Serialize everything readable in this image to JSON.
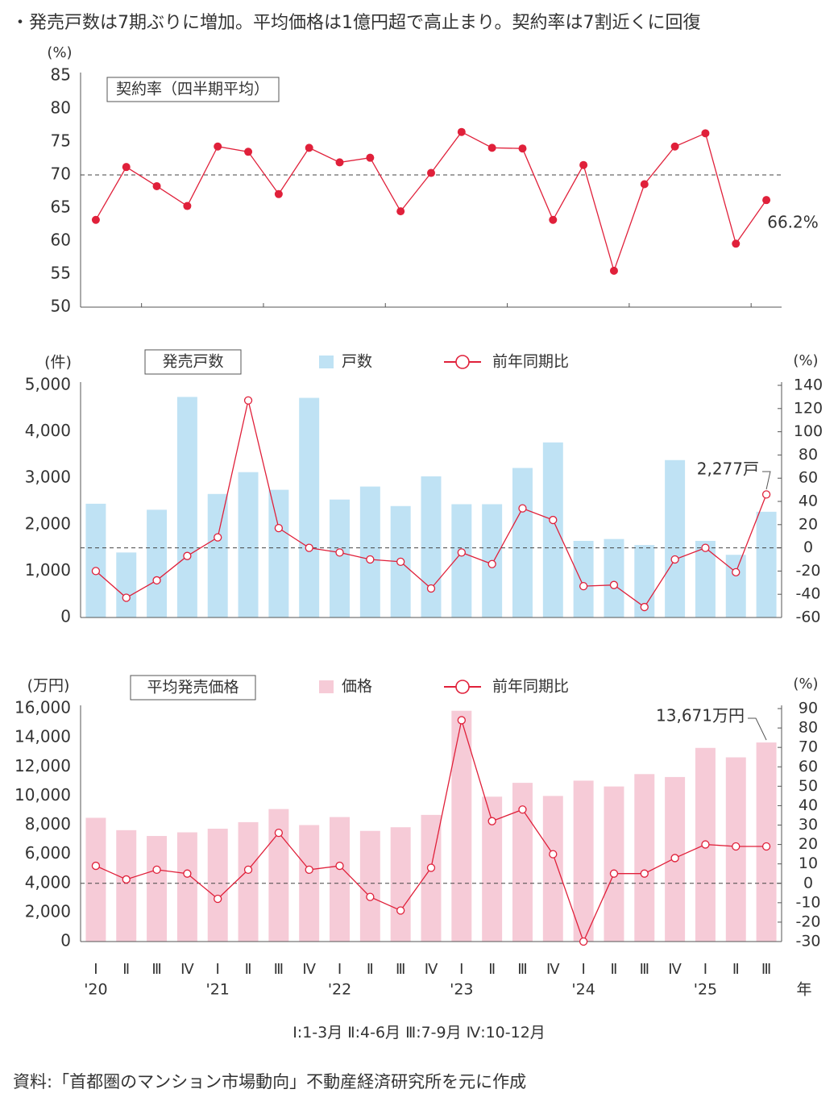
{
  "headline": "・発売戸数は7期ぶりに増加。平均価格は1億円超で高止まり。契約率は7割近くに回復",
  "quarter_legend": "Ⅰ:1-3月 Ⅱ:4-6月 Ⅲ:7-9月 Ⅳ:10-12月",
  "source": "資料:「首都圏のマンション市場動向」不動産経済研究所を元に作成",
  "colors": {
    "line": "#e0203a",
    "units_bar": "#bfe2f4",
    "price_bar": "#f6cbd7",
    "axis": "#555555",
    "ref_line": "#444444"
  },
  "chart_data": [
    {
      "type": "line",
      "title": "契約率（四半期平均）",
      "ylabel": "(%)",
      "ylim": [
        50,
        85
      ],
      "yticks": [
        50,
        55,
        60,
        65,
        70,
        75,
        80,
        85
      ],
      "reference_line": 70,
      "series": [
        {
          "values": [
            63.2,
            71.2,
            68.3,
            65.3,
            74.3,
            73.5,
            67.1,
            74.1,
            71.9,
            72.6,
            64.5,
            70.3,
            76.5,
            74.1,
            74.0,
            63.2,
            71.5,
            55.5,
            68.6,
            74.3,
            76.3,
            59.6,
            66.2
          ]
        }
      ],
      "end_label": "66.2%"
    },
    {
      "type": "bar",
      "title": "発売戸数",
      "ylabel": "(件)",
      "ylim": [
        0,
        5000
      ],
      "yticks": [
        0,
        1000,
        2000,
        3000,
        4000,
        5000
      ],
      "y2label": "(%)",
      "y2lim": [
        -60,
        140
      ],
      "y2ticks": [
        -60,
        -40,
        -20,
        0,
        20,
        40,
        60,
        80,
        100,
        120,
        140
      ],
      "reference_line_y2": 0,
      "series": [
        {
          "name": "戸数",
          "kind": "bar",
          "axis": "left",
          "values": [
            2450,
            1400,
            2320,
            4750,
            2660,
            3130,
            2750,
            4730,
            2540,
            2820,
            2400,
            3040,
            2440,
            2440,
            3220,
            3770,
            1650,
            1690,
            1560,
            3390,
            1650,
            1350,
            2277
          ]
        },
        {
          "name": "前年同期比",
          "kind": "line",
          "axis": "right",
          "values": [
            -20,
            -43,
            -28,
            -7,
            9,
            127,
            17,
            0,
            -4,
            -10,
            -12,
            -35,
            -4,
            -14,
            34,
            24,
            -33,
            -32,
            -51,
            -10,
            0,
            -21,
            46
          ]
        }
      ],
      "end_label": "2,277戸"
    },
    {
      "type": "bar",
      "title": "平均発売価格",
      "ylabel": "(万円)",
      "ylim": [
        0,
        16000
      ],
      "yticks": [
        0,
        2000,
        4000,
        6000,
        8000,
        10000,
        12000,
        14000,
        16000
      ],
      "y2label": "(%)",
      "y2lim": [
        -30,
        90
      ],
      "y2ticks": [
        -30,
        -20,
        -10,
        0,
        10,
        20,
        30,
        40,
        50,
        60,
        70,
        80,
        90
      ],
      "reference_line_y2": 0,
      "series": [
        {
          "name": "価格",
          "kind": "bar",
          "axis": "left",
          "values": [
            8500,
            7650,
            7250,
            7500,
            7750,
            8200,
            9100,
            8000,
            8550,
            7600,
            7850,
            8700,
            15850,
            9950,
            10900,
            10000,
            11050,
            10650,
            11500,
            11300,
            13300,
            12650,
            13671
          ]
        },
        {
          "name": "前年同期比",
          "kind": "line",
          "axis": "right",
          "values": [
            9,
            2,
            7,
            5,
            -8,
            7,
            26,
            7,
            9,
            -7,
            -14,
            8,
            84,
            32,
            38,
            15,
            -30,
            5,
            5,
            13,
            20,
            19,
            19
          ]
        }
      ],
      "end_label": "13,671万円"
    }
  ],
  "x_axis": {
    "quarters": [
      "Ⅰ",
      "Ⅱ",
      "Ⅲ",
      "Ⅳ",
      "Ⅰ",
      "Ⅱ",
      "Ⅲ",
      "Ⅳ",
      "Ⅰ",
      "Ⅱ",
      "Ⅲ",
      "Ⅳ",
      "Ⅰ",
      "Ⅱ",
      "Ⅲ",
      "Ⅳ",
      "Ⅰ",
      "Ⅱ",
      "Ⅲ",
      "Ⅳ",
      "Ⅰ",
      "Ⅱ",
      "Ⅲ"
    ],
    "years": [
      {
        "index": 0,
        "label": "'20"
      },
      {
        "index": 4,
        "label": "'21"
      },
      {
        "index": 8,
        "label": "'22"
      },
      {
        "index": 12,
        "label": "'23"
      },
      {
        "index": 16,
        "label": "'24"
      },
      {
        "index": 20,
        "label": "'25"
      }
    ],
    "year_suffix": "年"
  }
}
